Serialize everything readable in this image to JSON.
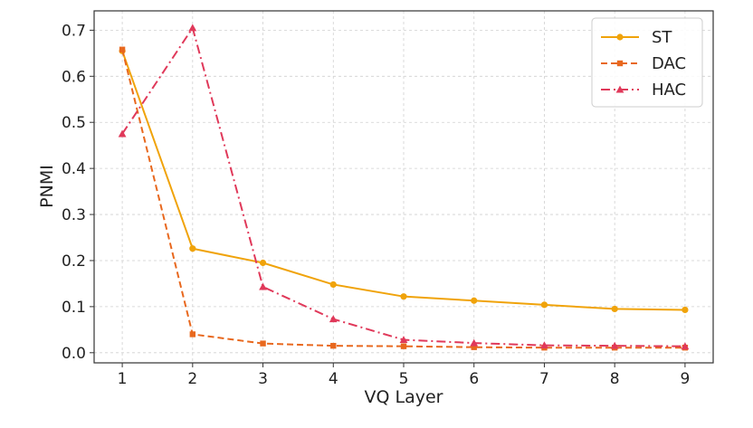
{
  "chart_data": {
    "type": "line",
    "xlabel": "VQ Layer",
    "ylabel": "PNMI",
    "xlim": [
      0.6,
      9.4
    ],
    "ylim": [
      -0.022,
      0.742
    ],
    "x_ticks": [
      1,
      2,
      3,
      4,
      5,
      6,
      7,
      8,
      9
    ],
    "y_ticks": [
      0.0,
      0.1,
      0.2,
      0.3,
      0.4,
      0.5,
      0.6,
      0.7
    ],
    "y_tick_labels": [
      "0.0",
      "0.1",
      "0.2",
      "0.3",
      "0.4",
      "0.5",
      "0.6",
      "0.7"
    ],
    "grid": true,
    "legend_position": "top-right",
    "x": [
      1,
      2,
      3,
      4,
      5,
      6,
      7,
      8,
      9
    ],
    "series": [
      {
        "name": "ST",
        "color": "#f0a30a",
        "line_style": "solid",
        "marker": "circle",
        "values": [
          0.655,
          0.226,
          0.195,
          0.148,
          0.122,
          0.113,
          0.104,
          0.095,
          0.093
        ]
      },
      {
        "name": "DAC",
        "color": "#e8681e",
        "line_style": "dashed",
        "marker": "square",
        "values": [
          0.658,
          0.04,
          0.02,
          0.015,
          0.014,
          0.012,
          0.011,
          0.011,
          0.011
        ]
      },
      {
        "name": "HAC",
        "color": "#e0395a",
        "line_style": "dashdot",
        "marker": "triangle",
        "values": [
          0.475,
          0.705,
          0.143,
          0.073,
          0.028,
          0.021,
          0.016,
          0.015,
          0.014
        ]
      }
    ]
  }
}
